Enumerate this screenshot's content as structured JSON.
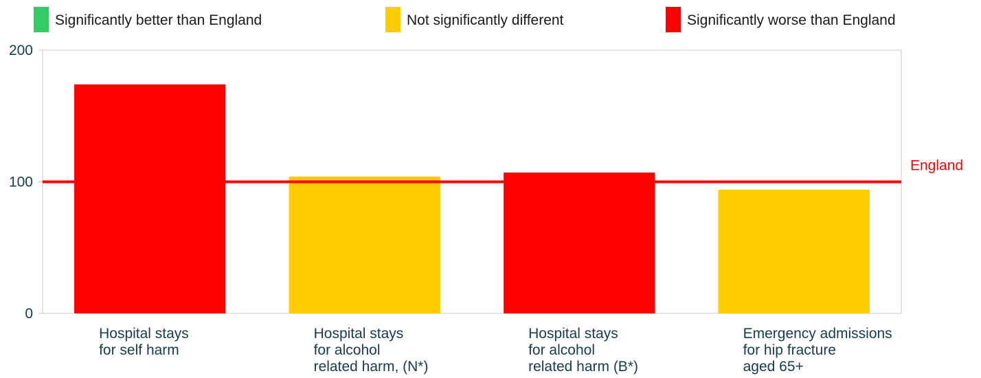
{
  "chart_data": {
    "type": "bar",
    "categories": [
      [
        "Hospital stays",
        "for self harm"
      ],
      [
        "Hospital stays",
        "for alcohol",
        "related harm, (N*)"
      ],
      [
        "Hospital stays",
        "for alcohol",
        "related harm (B*)"
      ],
      [
        "Emergency admissions",
        "for hip fracture",
        "aged 65+"
      ]
    ],
    "values": [
      174,
      104,
      107,
      94
    ],
    "statuses": [
      "worse",
      "similar",
      "worse",
      "similar"
    ],
    "ylim": [
      0,
      200
    ],
    "yticks": [
      "0",
      "100",
      "200"
    ],
    "reference_line": {
      "label": "England",
      "value": 100,
      "color": "#ff0000"
    },
    "legend": [
      {
        "key": "better",
        "label": "Significantly better than England",
        "color": "#33cc66"
      },
      {
        "key": "similar",
        "label": "Not significantly different",
        "color": "#ffcc00"
      },
      {
        "key": "worse",
        "label": "Significantly worse than England",
        "color": "#ff0000"
      }
    ],
    "legend_position": "top",
    "grid": false
  }
}
